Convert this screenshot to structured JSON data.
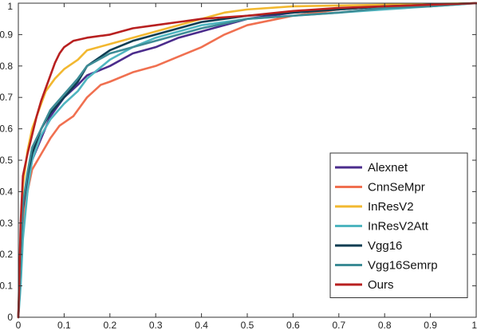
{
  "chart_data": {
    "type": "line",
    "title": "",
    "xlabel": "",
    "ylabel": "",
    "xlim": [
      0,
      1
    ],
    "ylim": [
      0,
      1
    ],
    "grid": false,
    "legend_position": "bottom-right",
    "xticks": [
      0,
      0.1,
      0.2,
      0.3,
      0.4,
      0.5,
      0.6,
      0.7,
      0.8,
      0.9,
      1
    ],
    "yticks": [
      0,
      0.1,
      0.2,
      0.3,
      0.4,
      0.5,
      0.6,
      0.7,
      0.8,
      0.9,
      1
    ],
    "xtick_labels": [
      "0",
      "0.1",
      "0.2",
      "0.3",
      "0.4",
      "0.5",
      "0.6",
      "0.7",
      "0.8",
      "0.9",
      "1"
    ],
    "ytick_labels": [
      "0",
      "0.1",
      "0.2",
      "0.3",
      "0.4",
      "0.5",
      "0.6",
      "0.7",
      "0.8",
      "0.9",
      "1"
    ],
    "series": [
      {
        "name": "Alexnet",
        "color": "#4B2C8C",
        "points": [
          [
            0,
            0
          ],
          [
            0.005,
            0.2
          ],
          [
            0.01,
            0.33
          ],
          [
            0.02,
            0.42
          ],
          [
            0.03,
            0.5
          ],
          [
            0.05,
            0.57
          ],
          [
            0.07,
            0.64
          ],
          [
            0.1,
            0.7
          ],
          [
            0.13,
            0.74
          ],
          [
            0.15,
            0.77
          ],
          [
            0.2,
            0.8
          ],
          [
            0.25,
            0.84
          ],
          [
            0.3,
            0.86
          ],
          [
            0.35,
            0.89
          ],
          [
            0.4,
            0.91
          ],
          [
            0.45,
            0.93
          ],
          [
            0.5,
            0.95
          ],
          [
            0.6,
            0.97
          ],
          [
            0.7,
            0.98
          ],
          [
            0.8,
            0.99
          ],
          [
            0.9,
            0.995
          ],
          [
            1,
            1
          ]
        ]
      },
      {
        "name": "CnnSeMpr",
        "color": "#F07050",
        "points": [
          [
            0,
            0
          ],
          [
            0.005,
            0.15
          ],
          [
            0.01,
            0.3
          ],
          [
            0.02,
            0.4
          ],
          [
            0.03,
            0.47
          ],
          [
            0.05,
            0.52
          ],
          [
            0.07,
            0.57
          ],
          [
            0.09,
            0.61
          ],
          [
            0.12,
            0.64
          ],
          [
            0.15,
            0.7
          ],
          [
            0.18,
            0.74
          ],
          [
            0.2,
            0.75
          ],
          [
            0.25,
            0.78
          ],
          [
            0.3,
            0.8
          ],
          [
            0.35,
            0.83
          ],
          [
            0.4,
            0.86
          ],
          [
            0.45,
            0.9
          ],
          [
            0.5,
            0.93
          ],
          [
            0.6,
            0.96
          ],
          [
            0.7,
            0.98
          ],
          [
            0.8,
            0.99
          ],
          [
            0.9,
            0.995
          ],
          [
            1,
            1
          ]
        ]
      },
      {
        "name": "InResV2",
        "color": "#F2B830",
        "points": [
          [
            0,
            0
          ],
          [
            0.005,
            0.25
          ],
          [
            0.01,
            0.42
          ],
          [
            0.02,
            0.53
          ],
          [
            0.03,
            0.6
          ],
          [
            0.04,
            0.64
          ],
          [
            0.05,
            0.68
          ],
          [
            0.06,
            0.72
          ],
          [
            0.08,
            0.76
          ],
          [
            0.1,
            0.79
          ],
          [
            0.13,
            0.82
          ],
          [
            0.15,
            0.85
          ],
          [
            0.2,
            0.87
          ],
          [
            0.25,
            0.89
          ],
          [
            0.3,
            0.91
          ],
          [
            0.35,
            0.93
          ],
          [
            0.4,
            0.95
          ],
          [
            0.45,
            0.97
          ],
          [
            0.5,
            0.98
          ],
          [
            0.6,
            0.99
          ],
          [
            0.8,
            0.995
          ],
          [
            1,
            1
          ]
        ]
      },
      {
        "name": "InResV2Att",
        "color": "#4FB5C0",
        "points": [
          [
            0,
            0
          ],
          [
            0.005,
            0.1
          ],
          [
            0.01,
            0.25
          ],
          [
            0.02,
            0.4
          ],
          [
            0.03,
            0.5
          ],
          [
            0.05,
            0.58
          ],
          [
            0.07,
            0.63
          ],
          [
            0.1,
            0.68
          ],
          [
            0.13,
            0.72
          ],
          [
            0.15,
            0.76
          ],
          [
            0.2,
            0.82
          ],
          [
            0.25,
            0.86
          ],
          [
            0.3,
            0.89
          ],
          [
            0.35,
            0.91
          ],
          [
            0.4,
            0.93
          ],
          [
            0.5,
            0.95
          ],
          [
            0.6,
            0.96
          ],
          [
            0.7,
            0.97
          ],
          [
            0.8,
            0.98
          ],
          [
            0.9,
            0.99
          ],
          [
            1,
            1
          ]
        ]
      },
      {
        "name": "Vgg16",
        "color": "#0E3D52",
        "points": [
          [
            0,
            0
          ],
          [
            0.005,
            0.2
          ],
          [
            0.01,
            0.35
          ],
          [
            0.02,
            0.45
          ],
          [
            0.03,
            0.52
          ],
          [
            0.05,
            0.6
          ],
          [
            0.07,
            0.65
          ],
          [
            0.1,
            0.7
          ],
          [
            0.13,
            0.75
          ],
          [
            0.15,
            0.8
          ],
          [
            0.2,
            0.85
          ],
          [
            0.25,
            0.88
          ],
          [
            0.3,
            0.9
          ],
          [
            0.35,
            0.92
          ],
          [
            0.4,
            0.94
          ],
          [
            0.5,
            0.96
          ],
          [
            0.6,
            0.97
          ],
          [
            0.7,
            0.98
          ],
          [
            0.8,
            0.99
          ],
          [
            0.9,
            0.995
          ],
          [
            1,
            1
          ]
        ]
      },
      {
        "name": "Vgg16Semrp",
        "color": "#3D8C96",
        "points": [
          [
            0,
            0
          ],
          [
            0.005,
            0.2
          ],
          [
            0.01,
            0.36
          ],
          [
            0.02,
            0.46
          ],
          [
            0.03,
            0.54
          ],
          [
            0.05,
            0.6
          ],
          [
            0.07,
            0.66
          ],
          [
            0.1,
            0.71
          ],
          [
            0.13,
            0.76
          ],
          [
            0.15,
            0.8
          ],
          [
            0.2,
            0.84
          ],
          [
            0.25,
            0.86
          ],
          [
            0.3,
            0.88
          ],
          [
            0.35,
            0.9
          ],
          [
            0.4,
            0.92
          ],
          [
            0.5,
            0.95
          ],
          [
            0.6,
            0.96
          ],
          [
            0.7,
            0.97
          ],
          [
            0.8,
            0.985
          ],
          [
            0.9,
            0.99
          ],
          [
            1,
            1
          ]
        ]
      },
      {
        "name": "Ours",
        "color": "#B82020",
        "points": [
          [
            0,
            0
          ],
          [
            0.005,
            0.3
          ],
          [
            0.01,
            0.45
          ],
          [
            0.02,
            0.52
          ],
          [
            0.03,
            0.58
          ],
          [
            0.04,
            0.64
          ],
          [
            0.05,
            0.69
          ],
          [
            0.06,
            0.73
          ],
          [
            0.07,
            0.77
          ],
          [
            0.08,
            0.81
          ],
          [
            0.09,
            0.84
          ],
          [
            0.1,
            0.86
          ],
          [
            0.12,
            0.88
          ],
          [
            0.15,
            0.89
          ],
          [
            0.2,
            0.9
          ],
          [
            0.25,
            0.92
          ],
          [
            0.3,
            0.93
          ],
          [
            0.35,
            0.94
          ],
          [
            0.4,
            0.95
          ],
          [
            0.5,
            0.96
          ],
          [
            0.6,
            0.975
          ],
          [
            0.7,
            0.985
          ],
          [
            0.8,
            0.99
          ],
          [
            0.9,
            0.995
          ],
          [
            1,
            1
          ]
        ]
      }
    ]
  }
}
